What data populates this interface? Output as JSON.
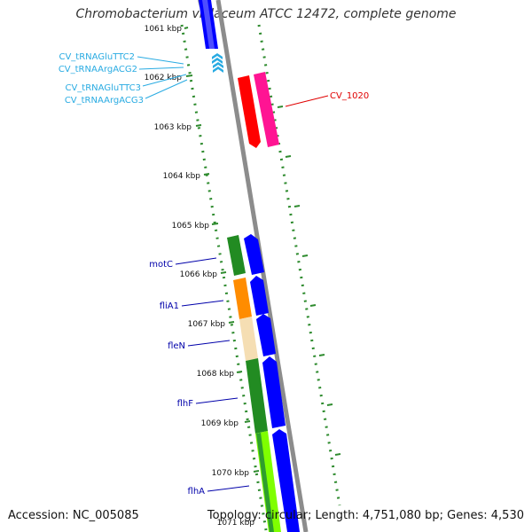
{
  "title": "Chromobacterium violaceum ATCC 12472, complete genome",
  "footer": {
    "accession": "Accession: NC_005085",
    "summary": "Topology: circular; Length: 4,751,080 bp; Genes: 4,530"
  },
  "ticks": [
    "1061 kbp",
    "1062 kbp",
    "1063 kbp",
    "1064 kbp",
    "1065 kbp",
    "1066 kbp",
    "1067 kbp",
    "1068 kbp",
    "1069 kbp",
    "1070 kbp",
    "1071 kbp"
  ],
  "gene_labels": [
    {
      "text": "CV_tRNAGluTTC2",
      "color": "#29abe2"
    },
    {
      "text": "CV_tRNAArgACG2",
      "color": "#29abe2"
    },
    {
      "text": "CV_tRNAGluTTC3",
      "color": "#29abe2"
    },
    {
      "text": "CV_tRNAArgACG3",
      "color": "#29abe2"
    },
    {
      "text": "CV_1020",
      "color": "#e00000"
    },
    {
      "text": "motC",
      "color": "#0000aa"
    },
    {
      "text": "fliA1",
      "color": "#0000aa"
    },
    {
      "text": "fleN",
      "color": "#0000aa"
    },
    {
      "text": "flhF",
      "color": "#0000aa"
    },
    {
      "text": "flhA",
      "color": "#0000aa"
    }
  ],
  "colors": {
    "backbone": "#8c8c8c",
    "gc_dots": "#2e8b2e",
    "forward_gene": "#0000ff",
    "tRNA": "#29abe2",
    "CV_1020_red": "#ff0000",
    "CV_1020_pink": "#ff1493",
    "motC_green": "#228b22",
    "fliA1_orange": "#ff8c00",
    "fleN_tan": "#f5deb3",
    "flhF_green": "#228b22",
    "flhA_lightgreen": "#7fff00"
  }
}
